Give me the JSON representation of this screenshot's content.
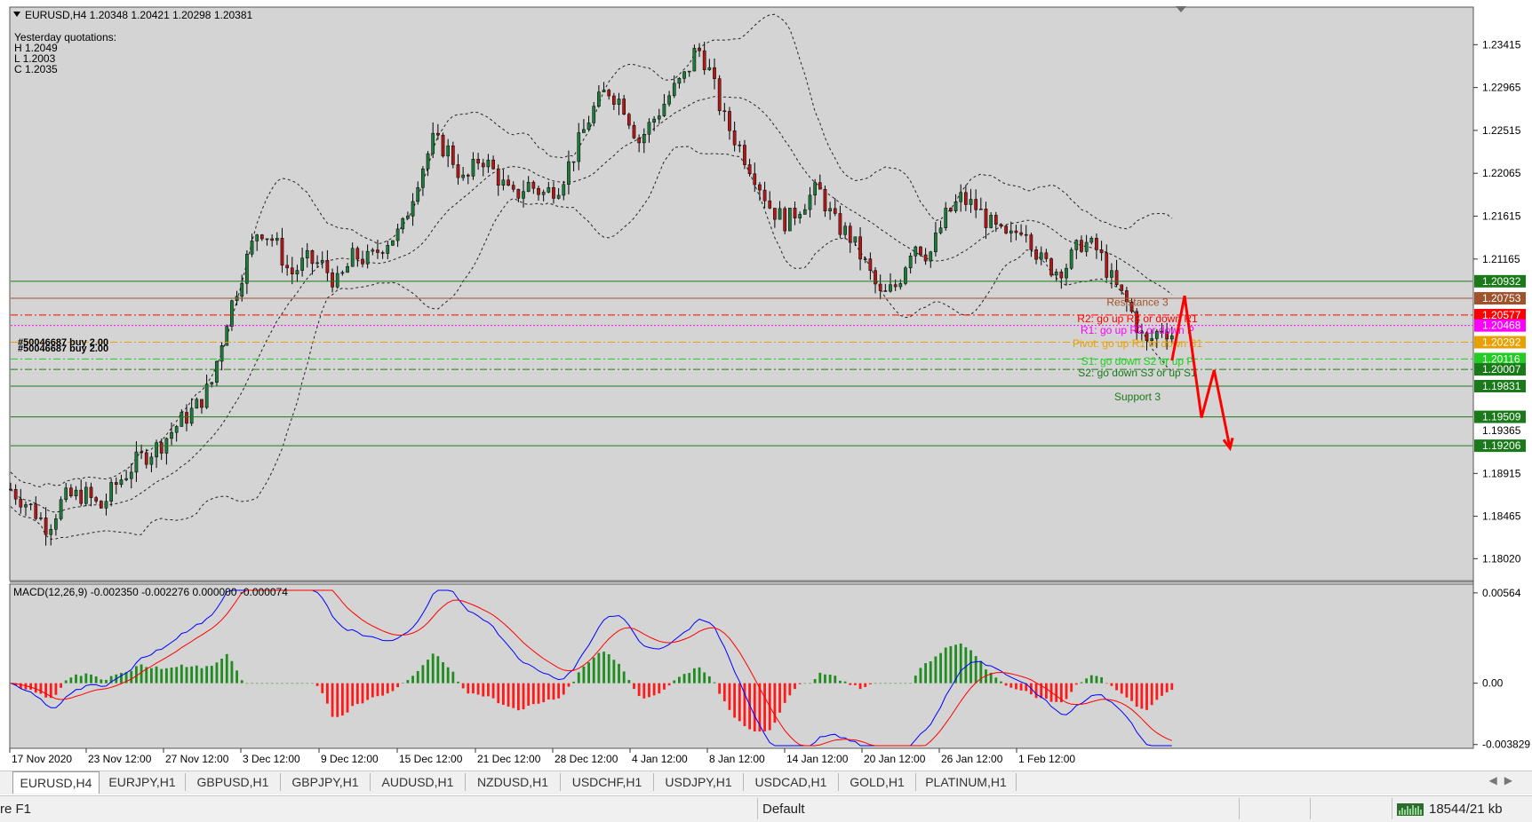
{
  "header": {
    "symbol_info": "EURUSD,H4  1.20348 1.20421 1.20298 1.20381",
    "quotations": [
      "Yesterday quotations:",
      "H 1.2049",
      "L 1.2003",
      "C 1.2035"
    ],
    "order_label": "#50046687 buy 2.00"
  },
  "chart_data": [
    {
      "type": "candlestick",
      "price_axis": {
        "min": 1.178,
        "max": 1.238,
        "ticks": [
          "1.23415",
          "1.22965",
          "1.22515",
          "1.22065",
          "1.21615",
          "1.21165",
          "1.18915",
          "1.18465",
          "1.18020"
        ],
        "tick_values": [
          1.23415,
          1.22965,
          1.22515,
          1.22065,
          1.21615,
          1.21165,
          1.18915,
          1.18465,
          1.1802
        ],
        "extra_tick": {
          "label": "1.19365",
          "value": 1.19365
        }
      },
      "time_axis": [
        "17 Nov 2020",
        "23 Nov 12:00",
        "27 Nov 12:00",
        "3 Dec 12:00",
        "9 Dec 12:00",
        "15 Dec 12:00",
        "21 Dec 12:00",
        "28 Dec 12:00",
        "4 Jan 12:00",
        "8 Jan 12:00",
        "14 Jan 12:00",
        "20 Jan 12:00",
        "26 Jan 12:00",
        "1 Feb 12:00"
      ],
      "close_path": [
        [
          0,
          1.1875
        ],
        [
          0.02,
          1.1855
        ],
        [
          0.035,
          1.1835
        ],
        [
          0.05,
          1.1865
        ],
        [
          0.07,
          1.187
        ],
        [
          0.085,
          1.1855
        ],
        [
          0.1,
          1.188
        ],
        [
          0.12,
          1.1905
        ],
        [
          0.14,
          1.192
        ],
        [
          0.16,
          1.1945
        ],
        [
          0.175,
          1.196
        ],
        [
          0.19,
          1.1985
        ],
        [
          0.205,
          1.2055
        ],
        [
          0.22,
          1.2105
        ],
        [
          0.235,
          1.215
        ],
        [
          0.25,
          1.2135
        ],
        [
          0.265,
          1.21
        ],
        [
          0.28,
          1.2115
        ],
        [
          0.295,
          1.211
        ],
        [
          0.31,
          1.209
        ],
        [
          0.325,
          1.212
        ],
        [
          0.34,
          1.2115
        ],
        [
          0.355,
          1.2135
        ],
        [
          0.37,
          1.2145
        ],
        [
          0.385,
          1.22
        ],
        [
          0.4,
          1.224
        ],
        [
          0.415,
          1.223
        ],
        [
          0.43,
          1.2195
        ],
        [
          0.445,
          1.2225
        ],
        [
          0.46,
          1.2205
        ],
        [
          0.475,
          1.218
        ],
        [
          0.49,
          1.2195
        ],
        [
          0.505,
          1.2185
        ],
        [
          0.52,
          1.2195
        ],
        [
          0.535,
          1.223
        ],
        [
          0.55,
          1.227
        ],
        [
          0.565,
          1.2295
        ],
        [
          0.58,
          1.228
        ],
        [
          0.595,
          1.224
        ],
        [
          0.61,
          1.2265
        ],
        [
          0.625,
          1.229
        ],
        [
          0.64,
          1.231
        ],
        [
          0.65,
          1.234
        ],
        [
          0.66,
          1.232
        ],
        [
          0.675,
          1.2265
        ],
        [
          0.69,
          1.2235
        ],
        [
          0.705,
          1.2205
        ],
        [
          0.72,
          1.217
        ],
        [
          0.735,
          1.2155
        ],
        [
          0.75,
          1.2175
        ],
        [
          0.765,
          1.219
        ],
        [
          0.78,
          1.2155
        ],
        [
          0.795,
          1.214
        ],
        [
          0.81,
          1.211
        ],
        [
          0.825,
          1.2075
        ],
        [
          0.84,
          1.209
        ],
        [
          0.855,
          1.2135
        ],
        [
          0.87,
          1.212
        ],
        [
          0.885,
          1.216
        ],
        [
          0.9,
          1.218
        ],
        [
          0.915,
          1.217
        ],
        [
          0.93,
          1.215
        ],
        [
          0.945,
          1.2135
        ],
        [
          0.96,
          1.2155
        ],
        [
          0.975,
          1.2115
        ],
        [
          0.99,
          1.2105
        ],
        [
          1.0,
          1.211
        ],
        [
          1.015,
          1.2135
        ],
        [
          1.03,
          1.2125
        ],
        [
          1.045,
          1.209
        ],
        [
          1.06,
          1.2065
        ],
        [
          1.075,
          1.2025
        ],
        [
          1.09,
          1.2045
        ],
        [
          1.1,
          1.2038
        ]
      ],
      "indicators": [
        "Bollinger Bands"
      ],
      "horizontal_levels": [
        {
          "label": "1.20932",
          "value": 1.20932,
          "color": "#1a7a1a",
          "style": "solid"
        },
        {
          "label": "1.20753",
          "value": 1.20753,
          "color": "#a0522d",
          "style": "solid"
        },
        {
          "label": "1.20577",
          "value": 1.20577,
          "color": "#ff0000",
          "style": "dashdot"
        },
        {
          "label": "1.20468",
          "value": 1.20468,
          "color": "#ff00ff",
          "style": "dotted"
        },
        {
          "label": "1.20292",
          "value": 1.20292,
          "color": "#e8a000",
          "style": "dashdot"
        },
        {
          "label": "1.20116",
          "value": 1.20116,
          "color": "#22cc22",
          "style": "dashdot"
        },
        {
          "label": "1.20007",
          "value": 1.20007,
          "color": "#1a7a1a",
          "style": "dashdot"
        },
        {
          "label": "1.19831",
          "value": 1.19831,
          "color": "#1a7a1a",
          "style": "solid"
        },
        {
          "label": "1.19509",
          "value": 1.19509,
          "color": "#1a7a1a",
          "style": "solid"
        },
        {
          "label": "1.19206",
          "value": 1.19206,
          "color": "#1a7a1a",
          "style": "solid"
        }
      ],
      "level_texts": [
        {
          "text": "Resistance 3",
          "color": "#a0522d"
        },
        {
          "text": "R2: go up R3 or down R1",
          "color": "#ff0000"
        },
        {
          "text": "R1: go up R2 or down P",
          "color": "#ff00ff"
        },
        {
          "text": "Pivot: go up R1 or down S1",
          "color": "#e8a000"
        },
        {
          "text": "S1: go down S2 or up P",
          "color": "#22cc22"
        },
        {
          "text": "S2: go down S3 or up S1",
          "color": "#1a7a1a"
        },
        {
          "text": "Support 3",
          "color": "#1a7a1a"
        }
      ],
      "forecast_arrow": {
        "color": "#ff0000",
        "points": [
          [
            1.1,
            1.201
          ],
          [
            1.112,
            1.2078
          ],
          [
            1.128,
            1.195
          ],
          [
            1.14,
            1.2
          ],
          [
            1.155,
            1.1918
          ]
        ]
      }
    },
    {
      "type": "macd",
      "title": "MACD(12,26,9) -0.002350 -0.002276 0.000000 -0.000074",
      "axis_ticks": [
        "0.00564",
        "0.00",
        "-0.003829"
      ],
      "axis_values": [
        0.00564,
        0.0,
        -0.003829
      ],
      "range": [
        -0.0039,
        0.0058
      ],
      "histogram_colors": {
        "positive": "#1e8c1e",
        "negative": "#ff1a1a"
      },
      "line_colors": {
        "main": "#0000ff",
        "signal": "#ff0000"
      }
    }
  ],
  "tabs": [
    "EURUSD,H4",
    "EURJPY,H1",
    "GBPUSD,H1",
    "GBPJPY,H1",
    "AUDUSD,H1",
    "NZDUSD,H1",
    "USDCHF,H1",
    "USDJPY,H1",
    "USDCAD,H1",
    "GOLD,H1",
    "PLATINUM,H1"
  ],
  "status": {
    "left": "re F1",
    "profile": "Default",
    "traffic": "18544/21 kb"
  }
}
